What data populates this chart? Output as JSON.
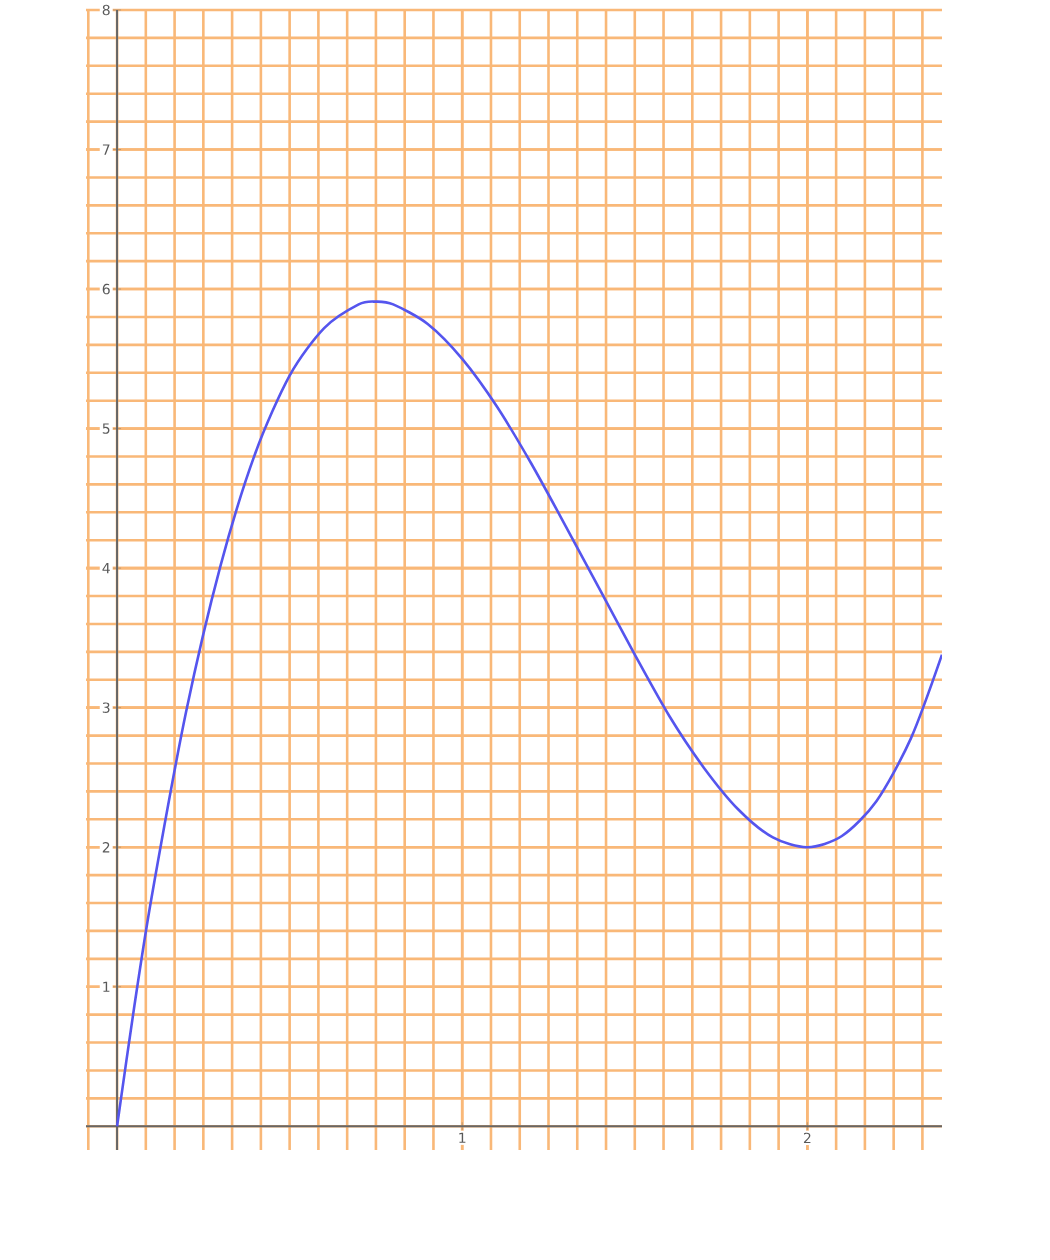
{
  "chart_data": {
    "type": "line",
    "x": [
      0,
      0.05,
      0.1,
      0.2,
      0.3,
      0.4,
      0.5,
      0.6,
      0.7,
      0.75,
      0.8,
      0.9,
      1.0,
      1.1,
      1.2,
      1.3,
      1.4,
      1.5,
      1.6,
      1.7,
      1.8,
      1.9,
      2.0,
      2.1,
      2.2,
      2.3,
      2.39
    ],
    "series": [
      {
        "color": "#5555ee",
        "values": [
          0,
          0.86,
          1.64,
          2.97,
          4.02,
          4.82,
          5.38,
          5.72,
          5.89,
          5.91,
          5.89,
          5.75,
          5.5,
          5.16,
          4.75,
          4.3,
          3.84,
          3.38,
          2.94,
          2.57,
          2.27,
          2.07,
          2,
          2.08,
          2.33,
          2.78,
          3.38
        ]
      }
    ],
    "xlim": [
      -0.09,
      2.39
    ],
    "ylim": [
      -0.17,
      8
    ],
    "xticks": [
      1,
      2
    ],
    "yticks": [
      1,
      2,
      3,
      4,
      5,
      6,
      7,
      8
    ],
    "grid": true
  }
}
